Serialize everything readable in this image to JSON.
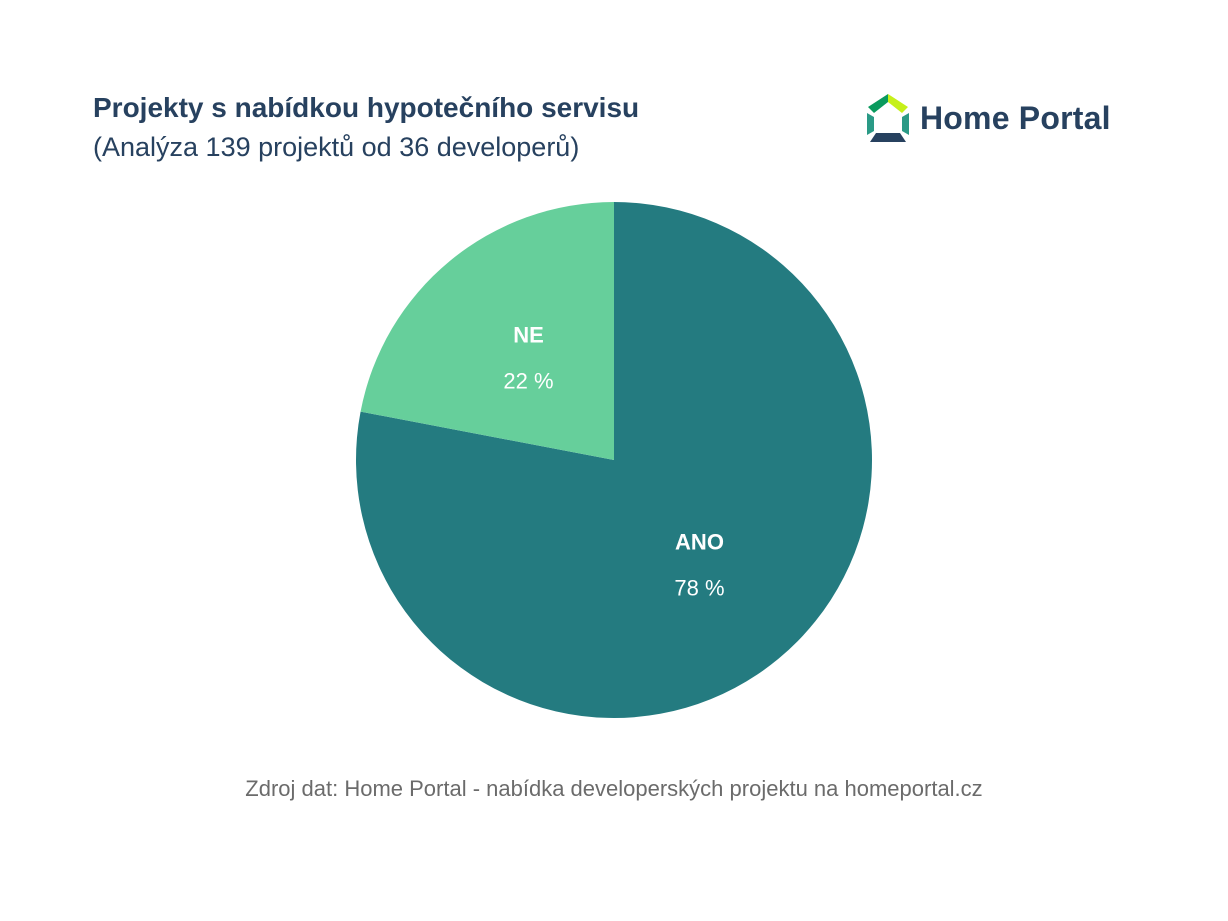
{
  "header": {
    "title": "Projekty s nabídkou hypotečního servisu",
    "subtitle": "(Analýza 139 projektů od 36 developerů)"
  },
  "logo": {
    "text": "Home Portal",
    "icon": "house-icon",
    "colors": {
      "left_roof": "#0a9a5e",
      "right_roof": "#c6f01a",
      "walls": "#2a9a86",
      "base": "#27415f"
    }
  },
  "chart_data": {
    "type": "pie",
    "start_angle_deg": 0,
    "direction": "clockwise",
    "slices": [
      {
        "label": "ANO",
        "value": 78,
        "value_label": "78 %",
        "color": "#247b80"
      },
      {
        "label": "NE",
        "value": 22,
        "value_label": "22 %",
        "color": "#66cf9b"
      }
    ]
  },
  "footer": {
    "source": "Zdroj dat: Home Portal - nabídka developerských projektu na homeportal.cz"
  },
  "colors": {
    "text_primary": "#27415f",
    "text_secondary": "#6b6b6b",
    "background": "#ffffff"
  }
}
